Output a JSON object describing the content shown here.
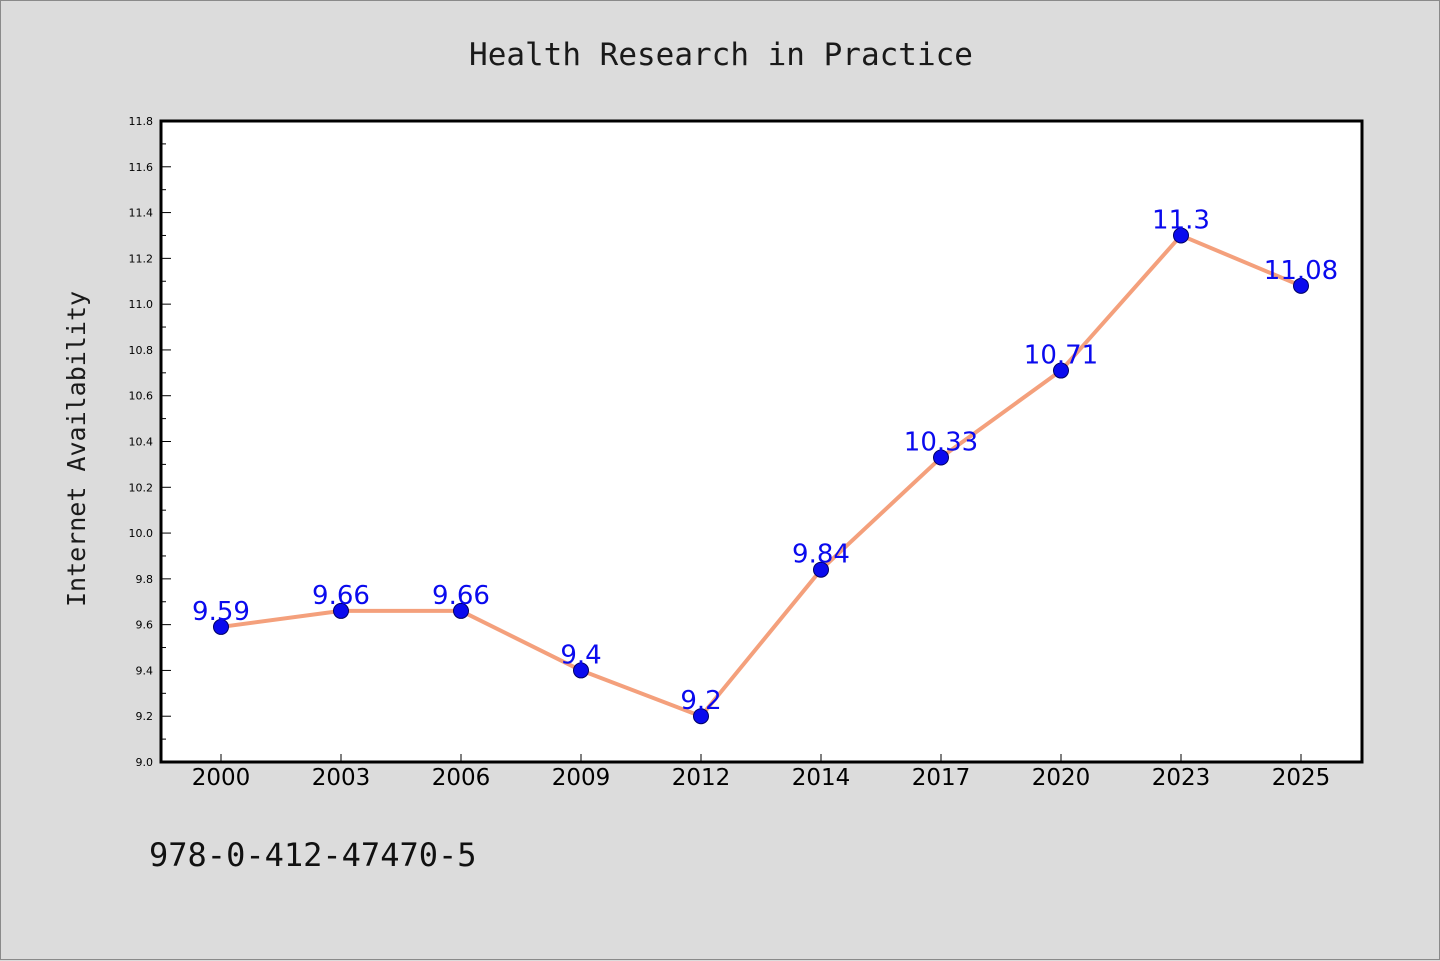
{
  "chart_data": {
    "type": "line",
    "title": "Health Research in Practice",
    "xlabel": "",
    "ylabel": "Internet Availability",
    "categories": [
      "2000",
      "2003",
      "2006",
      "2009",
      "2012",
      "2014",
      "2017",
      "2020",
      "2023",
      "2025"
    ],
    "series": [
      {
        "values": [
          9.59,
          9.66,
          9.66,
          9.4,
          9.2,
          9.84,
          10.33,
          10.71,
          11.3,
          11.08
        ],
        "data_labels": [
          "9.59",
          "9.66",
          "9.66",
          "9.4",
          "9.2",
          "9.84",
          "10.33",
          "10.71",
          "11.3",
          "11.08"
        ],
        "line_color": "#f4a07c",
        "marker_color": "#0a0aee",
        "marker_shape": "circle"
      }
    ],
    "ylim": [
      9.0,
      11.8
    ],
    "yticks": [
      "9.0",
      "9.2",
      "9.4",
      "9.6",
      "9.8",
      "10.0",
      "10.2",
      "10.4",
      "10.6",
      "10.8",
      "11.0",
      "11.2",
      "11.4",
      "11.6",
      "11.8"
    ],
    "grid": false,
    "legend": "none"
  },
  "footer": {
    "isbn": "978-0-412-47470-5"
  },
  "colors": {
    "background": "#dcdcdc",
    "plot_area": "#ffffff",
    "data_label": "#0a0aee"
  }
}
